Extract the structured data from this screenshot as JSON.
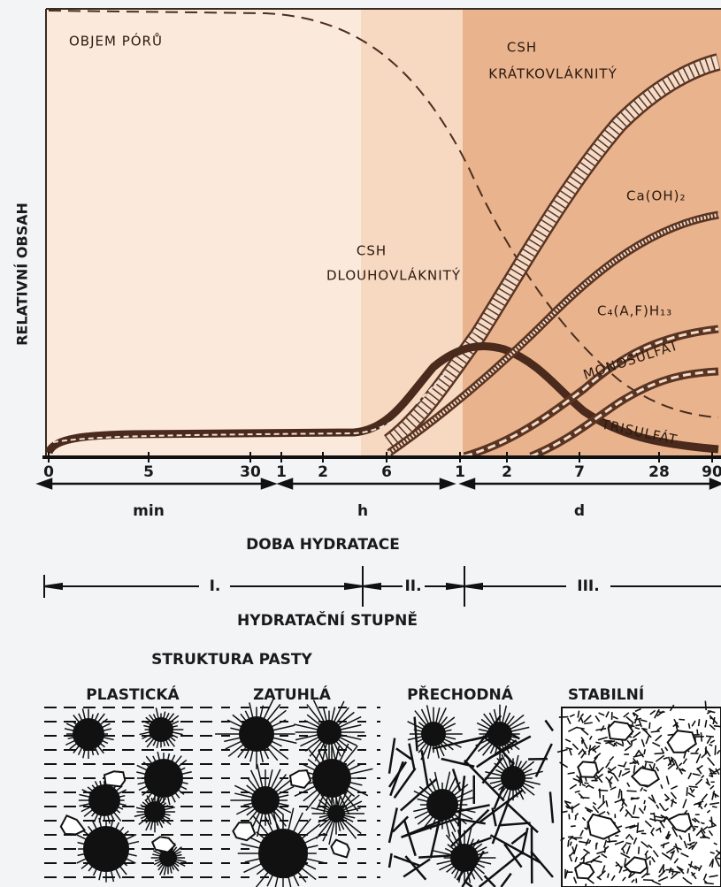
{
  "y_axis_label": "RELATIVNÍ OBSAH",
  "curve_labels": {
    "pore_volume": "OBJEM PÓRŮ",
    "csh_short": [
      "CSH",
      "KRÁTKOVLÁKNITÝ"
    ],
    "csh_long": [
      "CSH",
      "DLOUHOVLÁKNITÝ"
    ],
    "calcium_hydroxide": "Ca(OH)₂",
    "c4afh13": "C₄(A,F)H₁₃",
    "monosulfate": "MONOSULFÁT",
    "trisulfate": "TRISULFÁT"
  },
  "time_ticks": [
    "0",
    "5",
    "30",
    "1",
    "2",
    "6",
    "1",
    "2",
    "7",
    "28",
    "90"
  ],
  "time_units": [
    "min",
    "h",
    "d"
  ],
  "time_axis_title": "DOBA HYDRATACE",
  "stages": [
    "I.",
    "II.",
    "III."
  ],
  "stages_title": "HYDRATAČNÍ STUPNĚ",
  "structure_title": "STRUKTURA PASTY",
  "structures": [
    "PLASTICKÁ",
    "ZATUHLÁ",
    "PŘECHODNÁ",
    "STABILNÍ"
  ]
}
